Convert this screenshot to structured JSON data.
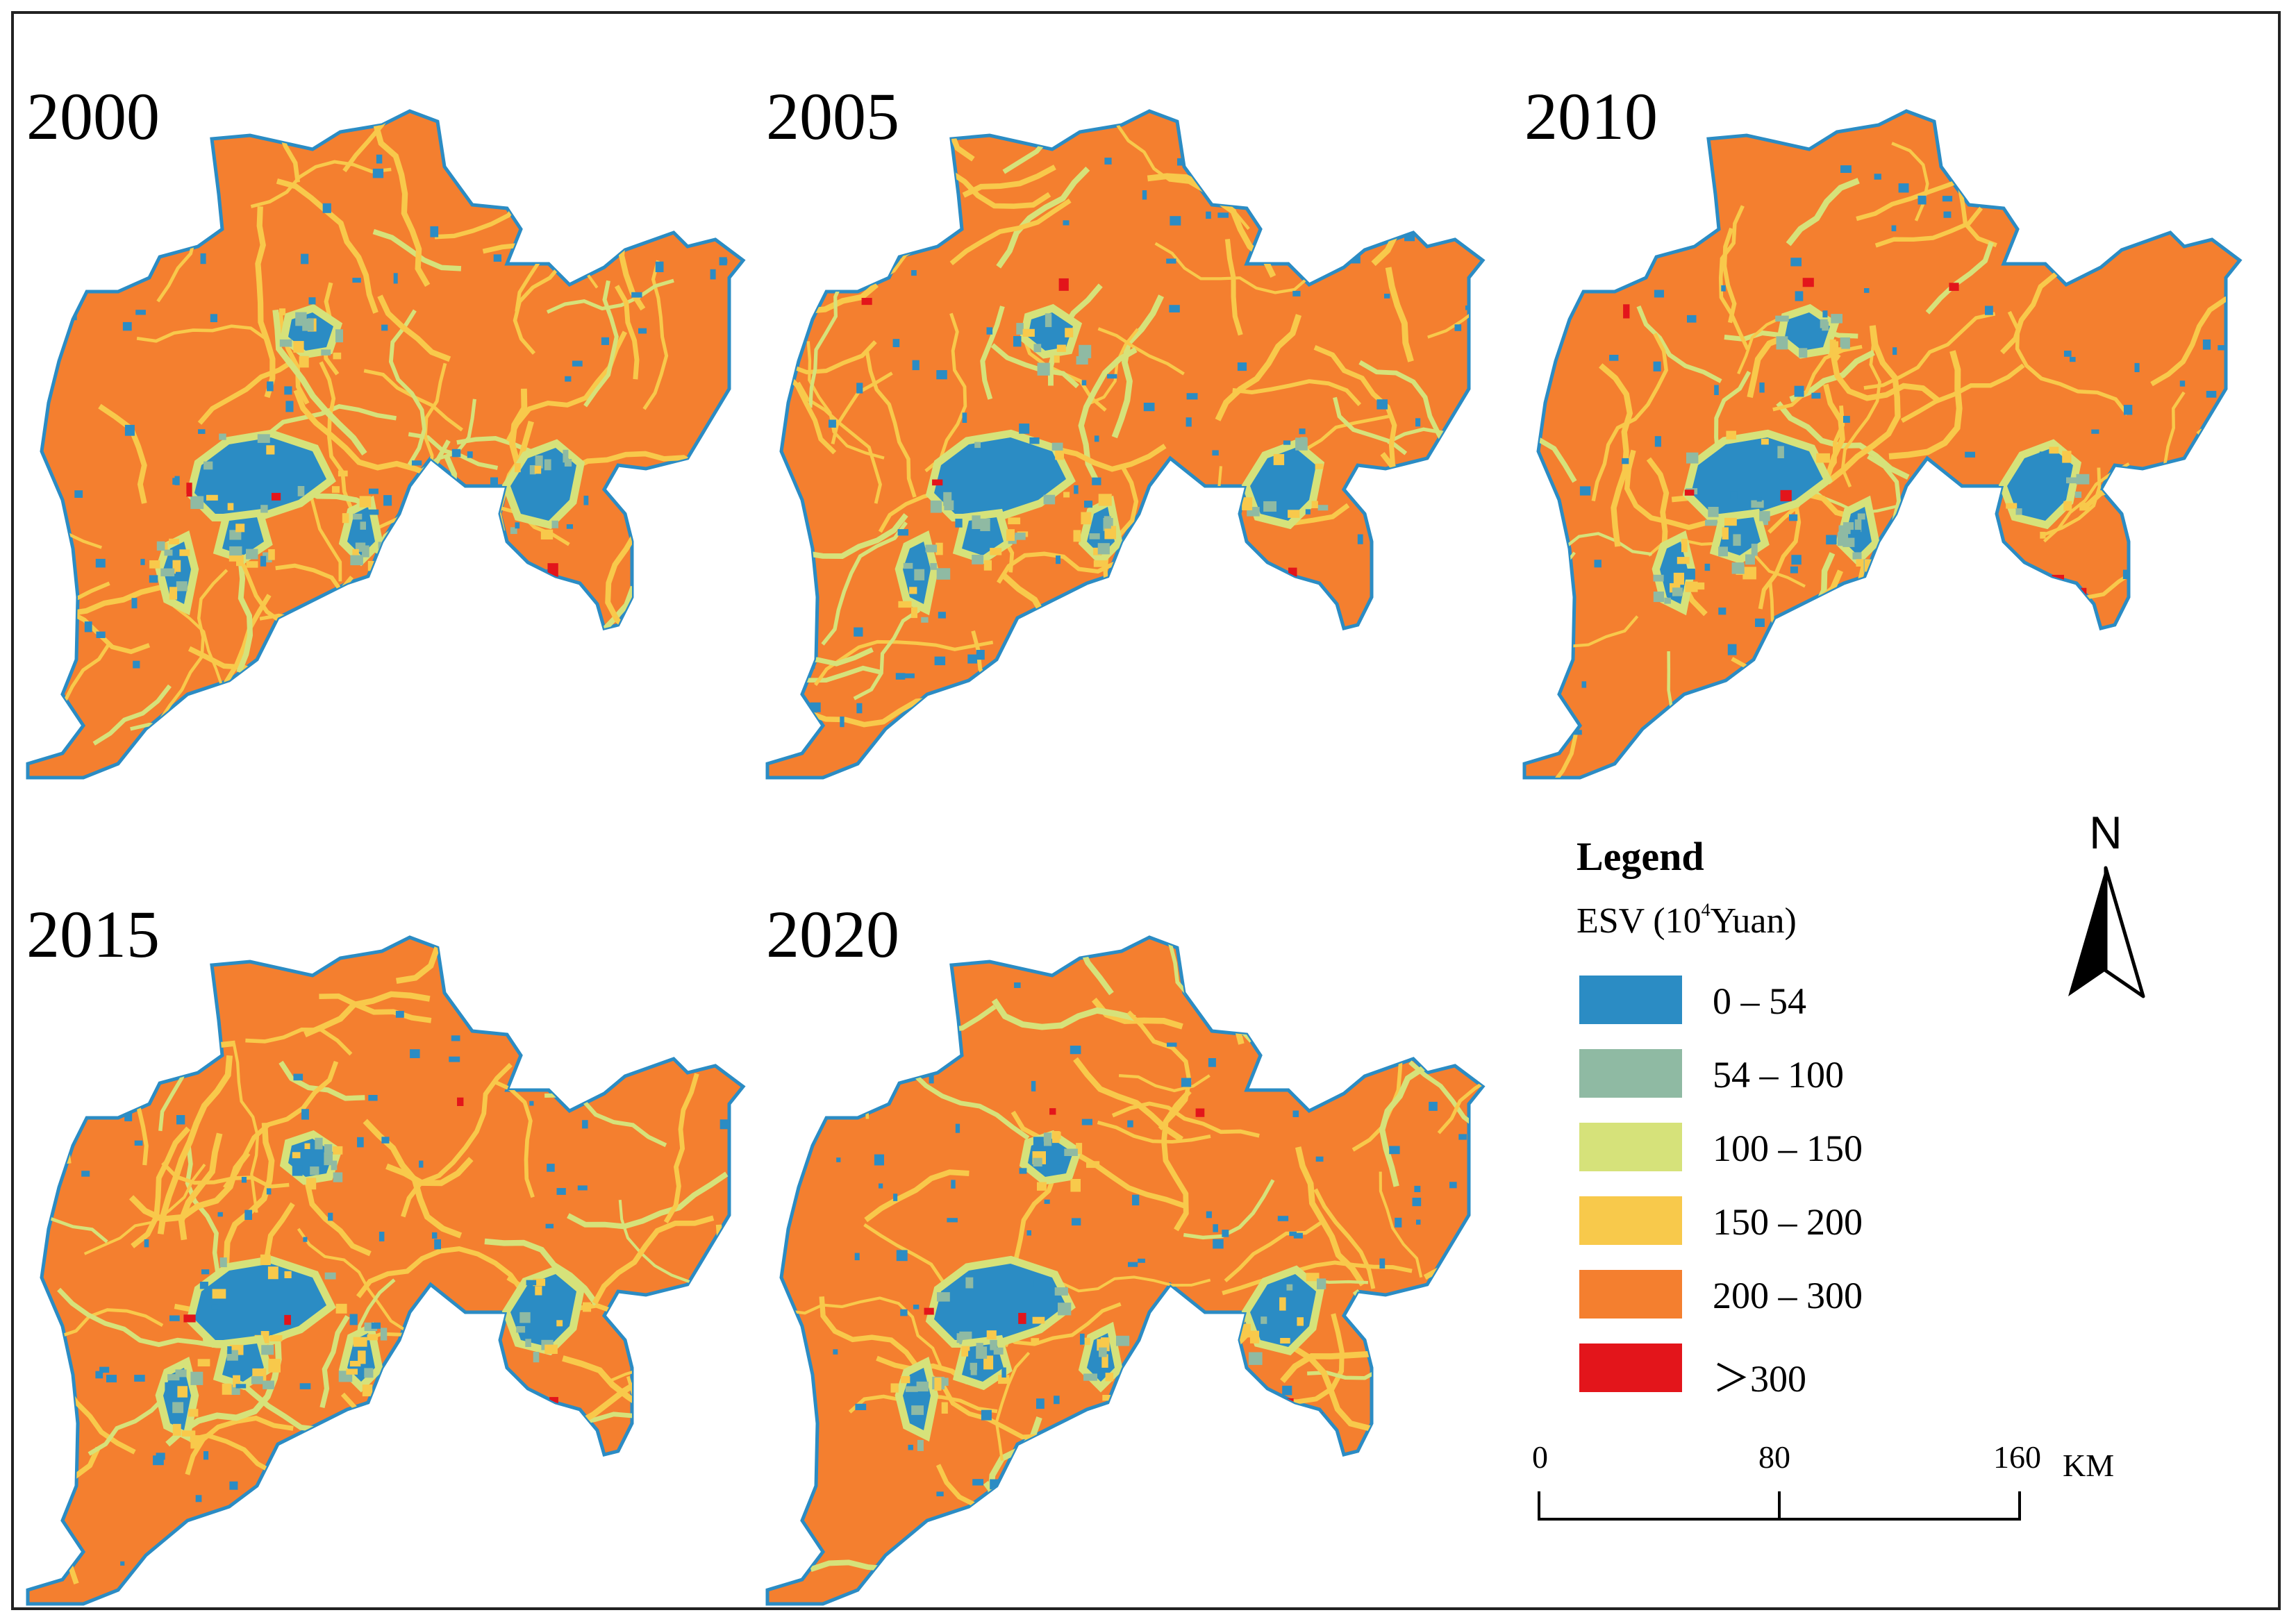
{
  "panels": [
    {
      "year": "2000"
    },
    {
      "year": "2005"
    },
    {
      "year": "2010"
    },
    {
      "year": "2015"
    },
    {
      "year": "2020"
    }
  ],
  "legend": {
    "title": "Legend",
    "subtitle_prefix": "ESV (10",
    "subtitle_sup": "4",
    "subtitle_suffix": "Yuan)",
    "classes": [
      {
        "label": "0 – 54",
        "color": "#2b8cc4"
      },
      {
        "label": "54 – 100",
        "color": "#8fbaa3"
      },
      {
        "label": "100 – 150",
        "color": "#d6e27a"
      },
      {
        "label": "150 – 200",
        "color": "#f8c94b"
      },
      {
        "label": "200 – 300",
        "color": "#f47f2f"
      },
      {
        "label": "＞300",
        "color": "#e3151b"
      }
    ]
  },
  "north_arrow": {
    "label": "N"
  },
  "scale_bar": {
    "ticks": [
      "0",
      "80",
      "160"
    ],
    "unit": "KM"
  }
}
